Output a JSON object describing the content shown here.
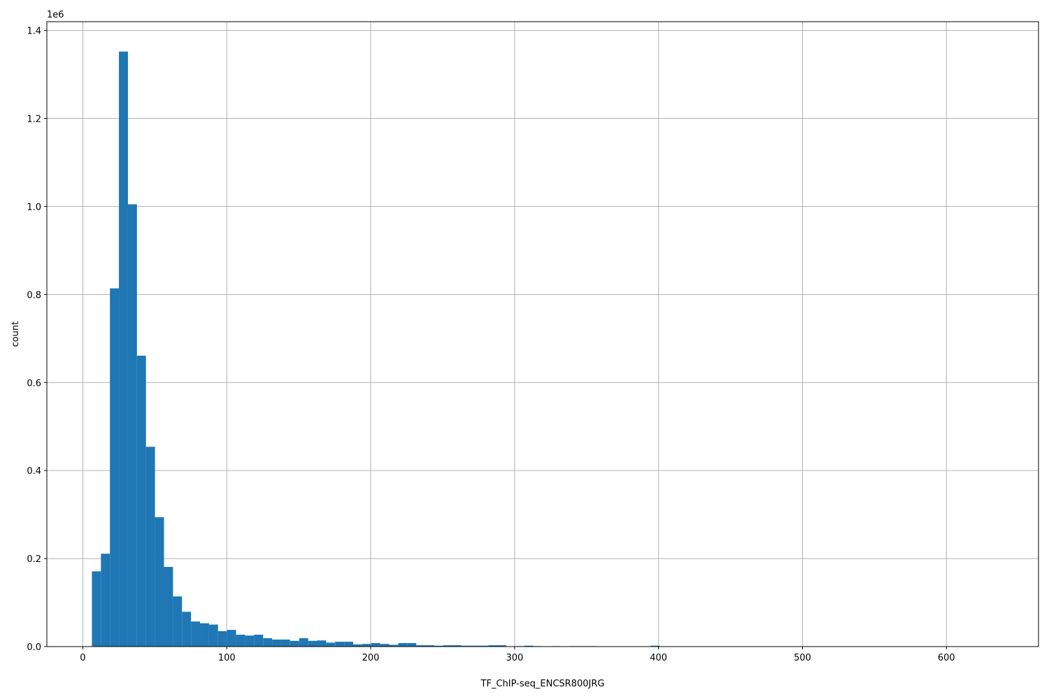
{
  "chart_data": {
    "type": "bar",
    "subtype": "histogram",
    "xlabel": "TF_ChIP-seq_ENCSR800JRG",
    "ylabel": "count",
    "y_offset_label": "1e6",
    "xlim": [
      -25,
      664
    ],
    "ylim": [
      0,
      1.42
    ],
    "y_unit_multiplier": 1000000,
    "grid": true,
    "bar_color": "#1f77b4",
    "bin_start": 6.3,
    "bin_width": 6.26,
    "xticks": [
      "0",
      "100",
      "200",
      "300",
      "400",
      "500",
      "600"
    ],
    "xtick_values": [
      0,
      100,
      200,
      300,
      400,
      500,
      600
    ],
    "yticks": [
      "0.0",
      "0.2",
      "0.4",
      "0.6",
      "0.8",
      "1.0",
      "1.2",
      "1.4"
    ],
    "ytick_values": [
      0,
      0.2,
      0.4,
      0.6,
      0.8,
      1.0,
      1.2,
      1.4
    ],
    "values": [
      0.171,
      0.211,
      0.814,
      1.352,
      1.005,
      0.661,
      0.454,
      0.294,
      0.181,
      0.114,
      0.079,
      0.057,
      0.053,
      0.05,
      0.035,
      0.038,
      0.027,
      0.025,
      0.027,
      0.019,
      0.016,
      0.016,
      0.013,
      0.019,
      0.013,
      0.014,
      0.009,
      0.011,
      0.011,
      0.005,
      0.006,
      0.008,
      0.006,
      0.004,
      0.008,
      0.008,
      0.003,
      0.003,
      0.002,
      0.003,
      0.003,
      0.002,
      0.002,
      0.002,
      0.003,
      0.003,
      0,
      0.001,
      0.002,
      0.001,
      0,
      0.001,
      0,
      0.001,
      0.001,
      0.001,
      0,
      0,
      0,
      0,
      0,
      0,
      0.002,
      0,
      0,
      0,
      0,
      0,
      0,
      0,
      0,
      0,
      0,
      0,
      0,
      0,
      0,
      0,
      0,
      0,
      0,
      0,
      0,
      0,
      0,
      0,
      0,
      0,
      0,
      0,
      0,
      0,
      0,
      0,
      0,
      0,
      0,
      0,
      0,
      0
    ]
  }
}
